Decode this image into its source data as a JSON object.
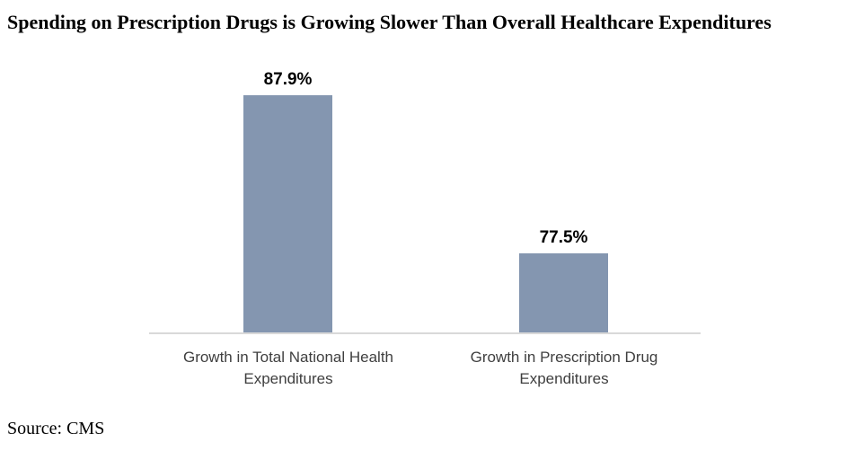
{
  "title": "Spending on Prescription Drugs is Growing Slower Than Overall Healthcare Expenditures",
  "source": "Source: CMS",
  "colors": {
    "bar": "#8496B0",
    "axis_line": "#D9D9D9",
    "title_text": "#000000",
    "value_label_text": "#000000",
    "category_text": "#3F3F3F",
    "background": "#FFFFFF"
  },
  "chart_data": {
    "type": "bar",
    "title": "Spending on Prescription Drugs is Growing Slower Than Overall Healthcare Expenditures",
    "categories": [
      {
        "label": "Growth in Total National Health Expenditures",
        "lines": [
          "Growth in Total National Health",
          "Expenditures"
        ]
      },
      {
        "label": "Growth in Prescription Drug Expenditures",
        "lines": [
          "Growth in Prescription Drug",
          "Expenditures"
        ]
      }
    ],
    "values": [
      87.9,
      77.5
    ],
    "value_labels": [
      "87.9%",
      "77.5%"
    ],
    "xlabel": "",
    "ylabel": "",
    "ylim": [
      72.25,
      87.9
    ],
    "grid": false,
    "legend": false,
    "bar_color": "#8496B0",
    "source": "Source: CMS"
  }
}
